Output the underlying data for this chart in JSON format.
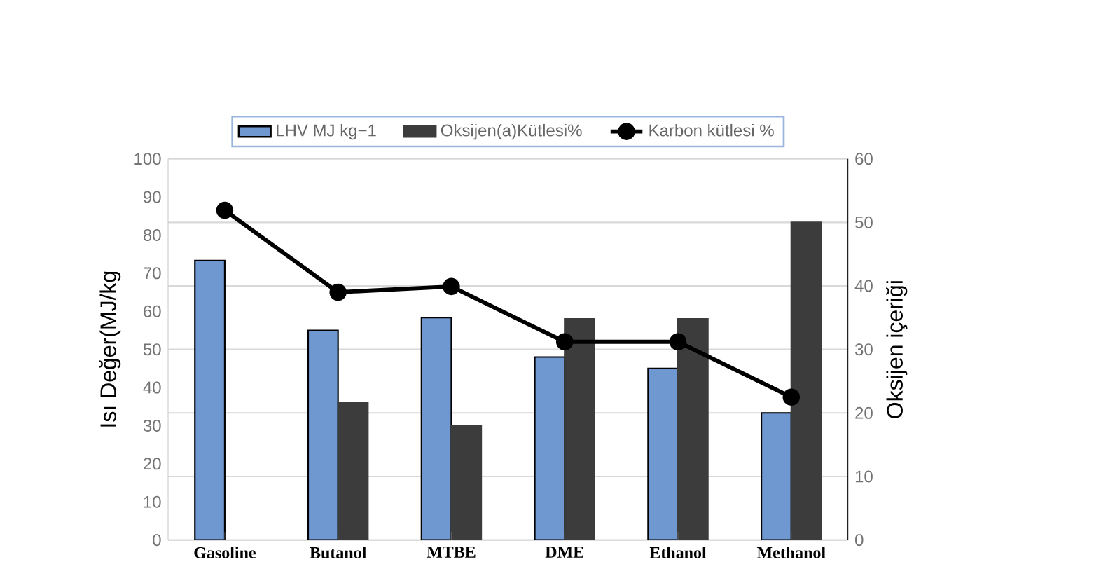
{
  "chart_data": {
    "type": "bar",
    "ylabel": "Isı Değer(MJ/kg",
    "y2label": "Oksijen içeriği",
    "categories": [
      "Gasoline",
      "Butanol",
      "MTBE",
      "DME",
      "Ethanol",
      "Methanol"
    ],
    "series": [
      {
        "name": "LHV   MJ kg−1",
        "axis": "y2",
        "color": "#6f97d0",
        "values": [
          44,
          33,
          35,
          28.8,
          27,
          20
        ]
      },
      {
        "name": "Oksijen(a)Kütlesi%",
        "axis": "y2",
        "color": "#3c3c3c",
        "values": [
          null,
          21.6,
          18,
          34.8,
          34.8,
          50
        ]
      },
      {
        "name": "Karbon kütlesi %",
        "type": "line",
        "axis": "y",
        "color": "#000000",
        "values": [
          86.5,
          65,
          66.5,
          52,
          52,
          37.5
        ]
      }
    ],
    "ylim": [
      0,
      100
    ],
    "yticks": [
      0,
      10,
      20,
      30,
      40,
      50,
      60,
      70,
      80,
      90,
      100
    ],
    "y2lim": [
      0,
      60
    ],
    "y2ticks": [
      0,
      10,
      20,
      30,
      40,
      50,
      60
    ],
    "grid": "y",
    "legend": "top",
    "marker": "circle",
    "line_style": "solid"
  }
}
